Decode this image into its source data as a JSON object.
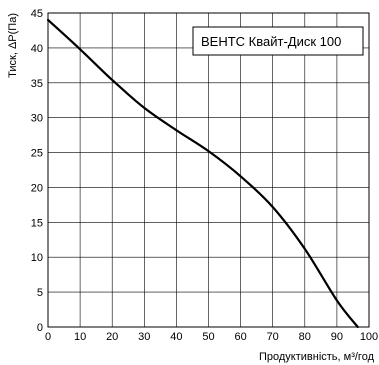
{
  "chart_data": {
    "type": "line",
    "title": "",
    "xlabel": "Продуктивність, м³/год",
    "ylabel": "Тиск, ΔP(Па)",
    "xlim": [
      0,
      100
    ],
    "ylim": [
      0,
      45
    ],
    "x_ticks": [
      "0",
      "10",
      "20",
      "30",
      "40",
      "50",
      "60",
      "70",
      "80",
      "90",
      "100"
    ],
    "y_ticks": [
      "0",
      "5",
      "10",
      "15",
      "20",
      "25",
      "30",
      "35",
      "40",
      "45"
    ],
    "grid": true,
    "legend_position": "top-right",
    "series": [
      {
        "name": "ВЕНТС Квайт-Диск 100",
        "color": "#000000",
        "x": [
          0,
          10,
          20,
          30,
          40,
          50,
          60,
          70,
          80,
          90,
          96.5
        ],
        "y": [
          44,
          39.8,
          35.4,
          31.4,
          28.2,
          25.2,
          21.6,
          17.2,
          11.2,
          3.8,
          0
        ]
      }
    ]
  }
}
